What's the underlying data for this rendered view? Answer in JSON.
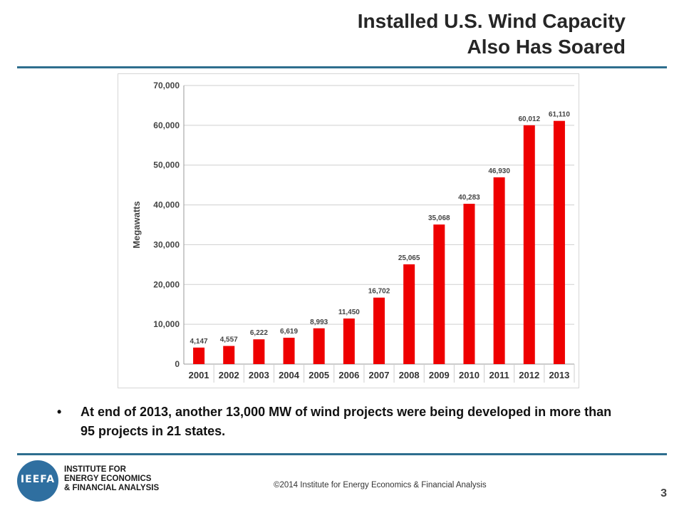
{
  "slide": {
    "title_line1": "Installed U.S. Wind Capacity",
    "title_line2": "Also Has Soared",
    "bullet": "At end of 2013, another 13,000 MW of wind projects were being developed in more than 95 projects in 21 states.",
    "copyright": "©2014 Institute for Energy Economics & Financial Analysis",
    "page_number": "3"
  },
  "logo": {
    "letters": "IEEFA",
    "name_lines": [
      "INSTITUTE FOR",
      "ENERGY ECONOMICS",
      "& FINANCIAL ANALYSIS"
    ]
  },
  "chart_data": {
    "type": "bar",
    "ylabel": "Megawatts",
    "categories": [
      "2001",
      "2002",
      "2003",
      "2004",
      "2005",
      "2006",
      "2007",
      "2008",
      "2009",
      "2010",
      "2011",
      "2012",
      "2013"
    ],
    "values": [
      4147,
      4557,
      6222,
      6619,
      8993,
      11450,
      16702,
      25065,
      35068,
      40283,
      46930,
      60012,
      61110
    ],
    "data_labels": [
      "4,147",
      "4,557",
      "6,222",
      "6,619",
      "8,993",
      "11,450",
      "16,702",
      "25,065",
      "35,068",
      "40,283",
      "46,930",
      "60,012",
      "61,110"
    ],
    "yticks": [
      "0",
      "10,000",
      "20,000",
      "30,000",
      "40,000",
      "50,000",
      "60,000",
      "70,000"
    ],
    "ylim": [
      0,
      70000
    ],
    "grid": true,
    "bar_color": "#ee0000"
  }
}
